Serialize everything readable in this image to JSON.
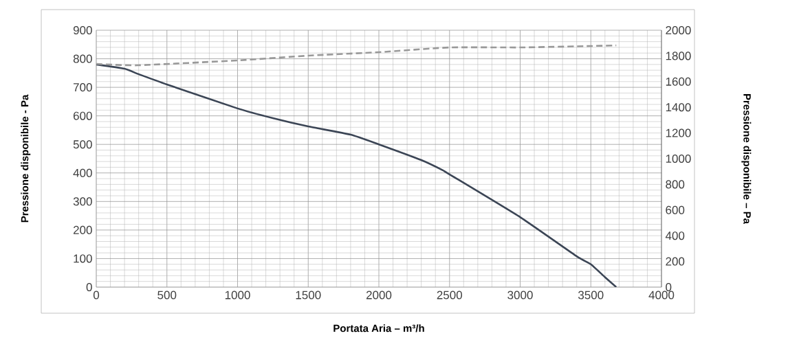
{
  "chart_data": {
    "type": "line",
    "xlabel": "Portata Aria – m³/h",
    "ylabel": "Pressione disponibile - Pa",
    "y2label": "Pressione disponibile – Pa",
    "xlim": [
      0,
      4000
    ],
    "xticks": [
      0,
      500,
      1000,
      1500,
      2000,
      2500,
      3000,
      3500,
      4000
    ],
    "ylim": [
      0,
      900
    ],
    "yticks": [
      0,
      100,
      200,
      300,
      400,
      500,
      600,
      700,
      800,
      900
    ],
    "y2lim": [
      0,
      2000
    ],
    "y2ticks": [
      0,
      200,
      400,
      600,
      800,
      1000,
      1200,
      1400,
      1600,
      1800,
      2000
    ],
    "grid": true,
    "series": [
      {
        "color": "#3b4555",
        "line_style": "solid",
        "x": [
          0,
          200,
          300,
          500,
          1000,
          1250,
          1500,
          1800,
          2000,
          2300,
          2450,
          2500,
          3000,
          3400,
          3500,
          3600,
          3680
        ],
        "values": [
          780,
          765,
          746,
          710,
          626,
          592,
          563,
          534,
          500,
          445,
          410,
          395,
          245,
          108,
          80,
          35,
          0
        ]
      },
      {
        "color": "#999999",
        "line_style": "dashed",
        "axis": "y2",
        "x": [
          0,
          290,
          1000,
          1500,
          2000,
          2500,
          3000,
          3500,
          3680
        ],
        "values": [
          1738,
          1727,
          1765,
          1802,
          1829,
          1866,
          1866,
          1877,
          1882
        ]
      }
    ]
  }
}
